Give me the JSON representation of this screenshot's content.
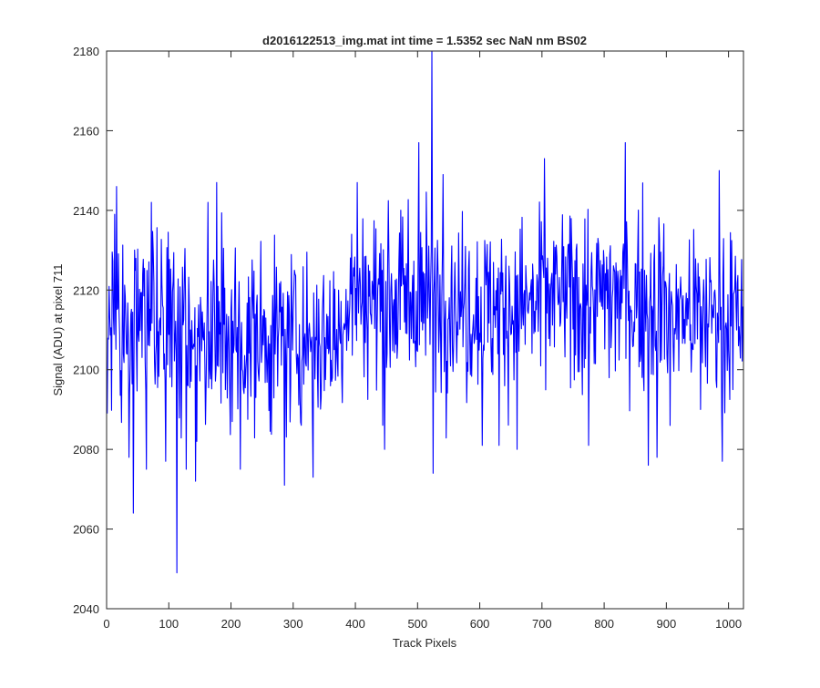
{
  "chart_data": {
    "type": "line",
    "title": "d2016122513_img.mat int time = 1.5352 sec  NaN nm BS02",
    "xlabel": "Track Pixels",
    "ylabel": "Signal (ADU) at pixel 711",
    "xlim": [
      0,
      1024
    ],
    "ylim": [
      2040,
      2180
    ],
    "xticks": [
      0,
      100,
      200,
      300,
      400,
      500,
      600,
      700,
      800,
      900,
      1000
    ],
    "yticks": [
      2040,
      2060,
      2080,
      2100,
      2120,
      2140,
      2160,
      2180
    ],
    "grid": false,
    "legend": "none",
    "series": [
      {
        "color": "#0000ff",
        "description": "~1024 noisy samples fluctuating roughly between 2085 and 2145 ADU, mean ~2113 ADU",
        "keypoints": [
          {
            "x": 1,
            "y": 2089
          },
          {
            "x": 13,
            "y": 2139
          },
          {
            "x": 16,
            "y": 2146
          },
          {
            "x": 36,
            "y": 2078
          },
          {
            "x": 43,
            "y": 2064
          },
          {
            "x": 64,
            "y": 2075
          },
          {
            "x": 72,
            "y": 2142
          },
          {
            "x": 95,
            "y": 2077
          },
          {
            "x": 113,
            "y": 2049
          },
          {
            "x": 128,
            "y": 2075
          },
          {
            "x": 143,
            "y": 2072
          },
          {
            "x": 163,
            "y": 2142
          },
          {
            "x": 177,
            "y": 2147
          },
          {
            "x": 215,
            "y": 2075
          },
          {
            "x": 286,
            "y": 2071
          },
          {
            "x": 332,
            "y": 2073
          },
          {
            "x": 394,
            "y": 2134
          },
          {
            "x": 403,
            "y": 2147
          },
          {
            "x": 447,
            "y": 2080
          },
          {
            "x": 502,
            "y": 2157
          },
          {
            "x": 523,
            "y": 2180
          },
          {
            "x": 525,
            "y": 2074
          },
          {
            "x": 541,
            "y": 2149
          },
          {
            "x": 604,
            "y": 2081
          },
          {
            "x": 631,
            "y": 2081
          },
          {
            "x": 660,
            "y": 2080
          },
          {
            "x": 704,
            "y": 2153
          },
          {
            "x": 775,
            "y": 2081
          },
          {
            "x": 834,
            "y": 2157
          },
          {
            "x": 871,
            "y": 2076
          },
          {
            "x": 885,
            "y": 2078
          },
          {
            "x": 906,
            "y": 2086
          },
          {
            "x": 955,
            "y": 2090
          },
          {
            "x": 985,
            "y": 2150
          },
          {
            "x": 990,
            "y": 2077
          },
          {
            "x": 1007,
            "y": 2095
          },
          {
            "x": 1016,
            "y": 2106
          },
          {
            "x": 1024,
            "y": 2112
          }
        ]
      }
    ]
  }
}
